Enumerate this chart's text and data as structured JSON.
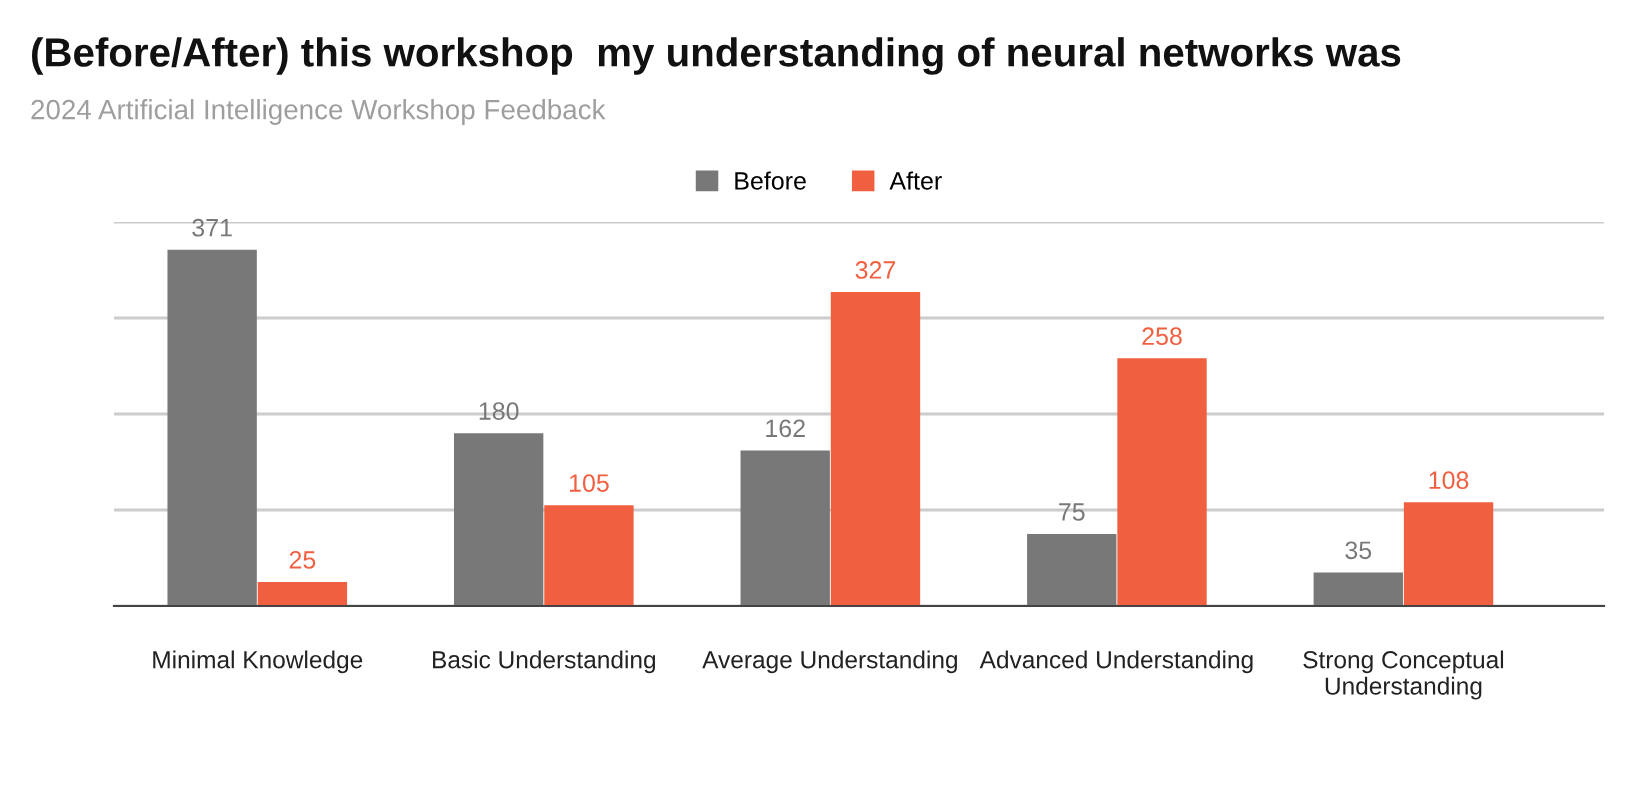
{
  "chart_data": {
    "type": "bar",
    "title": "(Before/After) this workshop  my understanding of neural networks was",
    "subtitle": "2024 Artificial Intelligence Workshop Feedback",
    "categories": [
      "Minimal Knowledge",
      "Basic Understanding",
      "Average Understanding",
      "Advanced Understanding",
      "Strong Conceptual Understanding"
    ],
    "series": [
      {
        "name": "Before",
        "color": "#787878",
        "values": [
          371,
          180,
          162,
          75,
          35
        ]
      },
      {
        "name": "After",
        "color": "#f05f40",
        "values": [
          25,
          105,
          327,
          258,
          108
        ]
      }
    ],
    "ylim": [
      0,
      400
    ],
    "yticks": [
      {
        "value": 0,
        "label": null
      },
      {
        "value": 100,
        "label": null
      },
      {
        "value": 200,
        "label": null
      },
      {
        "value": 300,
        "label": null
      },
      {
        "value": 400,
        "label": null
      }
    ],
    "grid": "y",
    "legend": "top",
    "data_labels": true,
    "tick_labels": "x"
  }
}
